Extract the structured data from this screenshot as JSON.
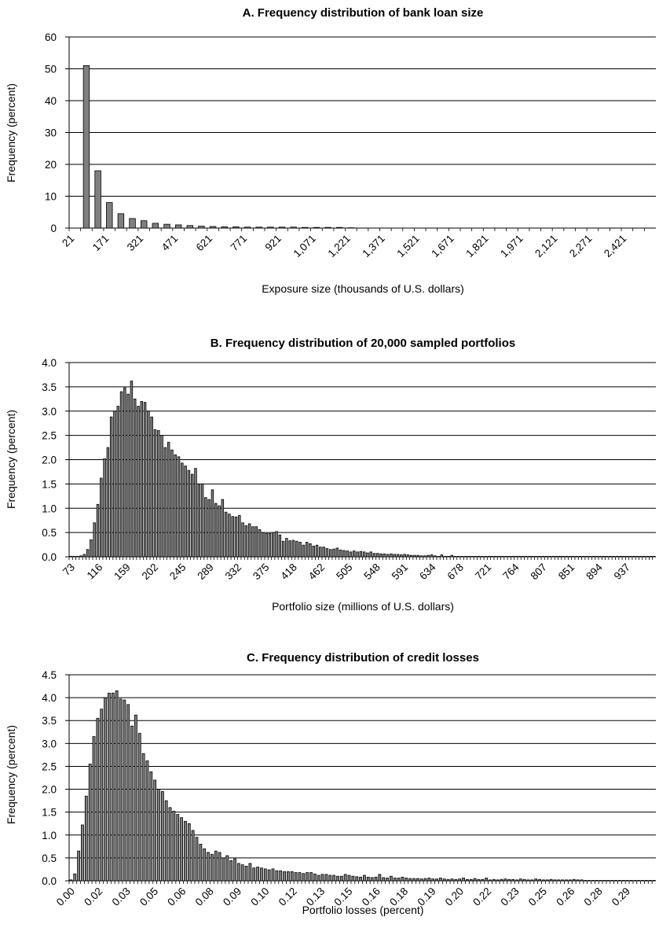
{
  "chart_data": [
    {
      "type": "bar",
      "title": "A. Frequency distribution of bank loan size",
      "xlabel": "Exposure size (thousands of U.S. dollars)",
      "ylabel": "Frequency (percent)",
      "ylim": [
        0,
        60
      ],
      "yticks": [
        "0",
        "10",
        "20",
        "30",
        "40",
        "50",
        "60"
      ],
      "grid": true,
      "bar_color": "#7f7f7f",
      "x_tick_labels": [
        "21",
        "171",
        "321",
        "471",
        "621",
        "771",
        "921",
        "1,071",
        "1,221",
        "1,371",
        "1,521",
        "1,671",
        "1,821",
        "1,971",
        "2,121",
        "2,271",
        "2,421"
      ],
      "categories": [
        "21",
        "71",
        "121",
        "171",
        "221",
        "271",
        "321",
        "371",
        "421",
        "471",
        "521",
        "571",
        "621",
        "671",
        "721",
        "771",
        "821",
        "871",
        "921",
        "971",
        "1,021",
        "1,071",
        "1,121",
        "1,171",
        "1,221",
        "1,271",
        "1,321",
        "1,371",
        "1,421",
        "1,471",
        "1,521",
        "1,571",
        "1,621",
        "1,671",
        "1,721",
        "1,771",
        "1,821",
        "1,871",
        "1,921",
        "1,971",
        "2,021",
        "2,071",
        "2,121",
        "2,171",
        "2,221",
        "2,271",
        "2,321",
        "2,371",
        "2,421",
        "2,471",
        "2,521"
      ],
      "values": [
        0,
        51.0,
        18.0,
        8.0,
        4.5,
        3.0,
        2.3,
        1.5,
        1.2,
        1.0,
        0.8,
        0.6,
        0.5,
        0.4,
        0.4,
        0.3,
        0.3,
        0.3,
        0.3,
        0.3,
        0.2,
        0.2,
        0.2,
        0.2,
        0.1,
        0,
        0,
        0,
        0,
        0,
        0,
        0,
        0,
        0,
        0,
        0,
        0,
        0,
        0,
        0,
        0,
        0,
        0,
        0,
        0,
        0,
        0,
        0,
        0,
        0,
        0
      ]
    },
    {
      "type": "bar",
      "title": "B. Frequency distribution of 20,000 sampled portfolios",
      "xlabel": "Portfolio size (millions of U.S. dollars)",
      "ylabel": "Frequency (percent)",
      "ylim": [
        0,
        4.0
      ],
      "yticks": [
        "0.0",
        "0.5",
        "1.0",
        "1.5",
        "2.0",
        "2.5",
        "3.0",
        "3.5",
        "4.0"
      ],
      "grid": true,
      "bar_color": "#7f7f7f",
      "x_tick_labels": [
        "73",
        "116",
        "159",
        "202",
        "245",
        "289",
        "332",
        "375",
        "418",
        "462",
        "505",
        "548",
        "591",
        "634",
        "678",
        "721",
        "764",
        "807",
        "851",
        "894",
        "937"
      ],
      "x_range": [
        73,
        980
      ],
      "values": [
        0.01,
        0.01,
        0.01,
        0.02,
        0.05,
        0.15,
        0.35,
        0.7,
        1.08,
        1.62,
        2.02,
        2.25,
        2.88,
        3.0,
        3.1,
        3.4,
        3.48,
        3.35,
        3.62,
        3.25,
        3.1,
        3.2,
        3.18,
        3.0,
        2.88,
        2.62,
        2.6,
        2.5,
        2.25,
        2.36,
        2.2,
        2.1,
        2.06,
        1.93,
        1.87,
        1.78,
        1.7,
        1.82,
        1.48,
        1.5,
        1.22,
        1.18,
        1.38,
        1.1,
        1.05,
        1.18,
        0.92,
        0.88,
        0.83,
        0.82,
        0.85,
        0.7,
        0.64,
        0.68,
        0.62,
        0.62,
        0.56,
        0.5,
        0.48,
        0.48,
        0.5,
        0.52,
        0.45,
        0.32,
        0.38,
        0.33,
        0.34,
        0.32,
        0.3,
        0.24,
        0.3,
        0.27,
        0.22,
        0.24,
        0.2,
        0.2,
        0.17,
        0.15,
        0.16,
        0.18,
        0.14,
        0.13,
        0.12,
        0.1,
        0.12,
        0.1,
        0.11,
        0.1,
        0.08,
        0.1,
        0.07,
        0.07,
        0.06,
        0.06,
        0.05,
        0.06,
        0.05,
        0.05,
        0.04,
        0.05,
        0.04,
        0.03,
        0.03,
        0.03,
        0.02,
        0.02,
        0.03,
        0.04,
        0.02,
        0.01,
        0.04,
        0.01,
        0.01,
        0.03,
        0.01,
        0.01,
        0.01,
        0.01,
        0.01,
        0.01,
        0.01,
        0.01,
        0.01,
        0.01,
        0.01,
        0.01,
        0.01,
        0.01,
        0.01,
        0.01,
        0.01,
        0.01,
        0.01,
        0.01,
        0.01,
        0.01,
        0.01,
        0.01,
        0.01,
        0.01,
        0.01,
        0.01,
        0.01,
        0.01,
        0.01,
        0.01,
        0.01,
        0.01,
        0.01,
        0.01,
        0.01,
        0.01,
        0.01,
        0.01,
        0.01,
        0.01,
        0.01,
        0.01,
        0.01,
        0.01,
        0.01,
        0.01,
        0.01,
        0.01,
        0.01,
        0.01,
        0.01,
        0.01,
        0.01,
        0.01,
        0.01,
        0.01,
        0.01,
        0.01
      ]
    },
    {
      "type": "bar",
      "title": "C. Frequency distribution of credit losses",
      "xlabel": "Portfolio losses (percent)",
      "ylabel": "Frequency (percent)",
      "ylim": [
        0,
        4.5
      ],
      "yticks": [
        "0.0",
        "0.5",
        "1.0",
        "1.5",
        "2.0",
        "2.5",
        "3.0",
        "3.5",
        "4.0",
        "4.5"
      ],
      "grid": true,
      "bar_color": "#7f7f7f",
      "x_tick_labels": [
        "0.00",
        "0.02",
        "0.03",
        "0.05",
        "0.06",
        "0.08",
        "0.09",
        "0.10",
        "0.12",
        "0.13",
        "0.15",
        "0.16",
        "0.18",
        "0.19",
        "0.20",
        "0.22",
        "0.23",
        "0.25",
        "0.26",
        "0.28",
        "0.29"
      ],
      "x_range": [
        0,
        0.3
      ],
      "values": [
        0.02,
        0.15,
        0.65,
        1.22,
        1.85,
        2.55,
        3.15,
        3.55,
        3.75,
        4.0,
        4.1,
        4.1,
        4.15,
        3.97,
        3.95,
        3.85,
        3.38,
        3.62,
        3.22,
        2.78,
        2.62,
        2.38,
        2.2,
        2.0,
        1.95,
        1.75,
        1.6,
        1.52,
        1.45,
        1.38,
        1.3,
        1.25,
        1.1,
        0.95,
        0.8,
        0.7,
        0.62,
        0.58,
        0.65,
        0.62,
        0.5,
        0.55,
        0.44,
        0.48,
        0.38,
        0.35,
        0.32,
        0.38,
        0.28,
        0.3,
        0.28,
        0.26,
        0.24,
        0.26,
        0.22,
        0.22,
        0.2,
        0.2,
        0.2,
        0.18,
        0.18,
        0.16,
        0.18,
        0.18,
        0.15,
        0.12,
        0.14,
        0.14,
        0.12,
        0.12,
        0.1,
        0.1,
        0.14,
        0.12,
        0.1,
        0.09,
        0.08,
        0.12,
        0.08,
        0.07,
        0.08,
        0.14,
        0.07,
        0.06,
        0.1,
        0.06,
        0.06,
        0.08,
        0.06,
        0.05,
        0.05,
        0.05,
        0.04,
        0.05,
        0.06,
        0.04,
        0.04,
        0.06,
        0.04,
        0.03,
        0.04,
        0.03,
        0.04,
        0.06,
        0.03,
        0.03,
        0.05,
        0.03,
        0.03,
        0.06,
        0.02,
        0.03,
        0.02,
        0.03,
        0.04,
        0.03,
        0.03,
        0.02,
        0.04,
        0.03,
        0.02,
        0.02,
        0.04,
        0.03,
        0.02,
        0.02,
        0.03,
        0.02,
        0.02,
        0.02,
        0.02,
        0.02,
        0.03,
        0.02,
        0.02,
        0.01,
        0.01,
        0.01,
        0.01,
        0.01,
        0.01,
        0.01,
        0.01,
        0.01,
        0.01,
        0.01,
        0.01,
        0.01,
        0.01,
        0.01,
        0.01,
        0.01,
        0.01,
        0.01
      ]
    }
  ]
}
